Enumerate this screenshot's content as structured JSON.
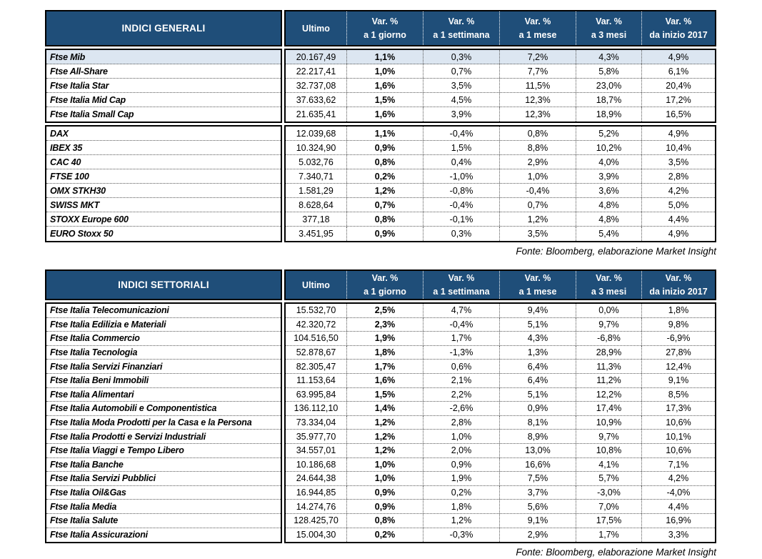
{
  "colors": {
    "header_bg": "#1F4E79",
    "highlight_row_bg": "#DCE6F1",
    "border": "#000000"
  },
  "columns": {
    "ultimo": "Ultimo",
    "var_label": "Var. %",
    "periods": [
      "a 1 giorno",
      "a 1 settimana",
      "a 1 mese",
      "a 3 mesi",
      "da inizio 2017"
    ]
  },
  "tables": [
    {
      "title": "INDICI GENERALI",
      "source": "Fonte: Bloomberg, elaborazione Market Insight",
      "groups": [
        {
          "rows": [
            {
              "name": "Ftse Mib",
              "highlight": true,
              "values": [
                "20.167,49",
                "1,1%",
                "0,3%",
                "7,2%",
                "4,3%",
                "4,9%"
              ]
            },
            {
              "name": "Ftse All-Share",
              "values": [
                "22.217,41",
                "1,0%",
                "0,7%",
                "7,7%",
                "5,8%",
                "6,1%"
              ]
            },
            {
              "name": "Ftse Italia Star",
              "values": [
                "32.737,08",
                "1,6%",
                "3,5%",
                "11,5%",
                "23,0%",
                "20,4%"
              ]
            },
            {
              "name": "Ftse Italia Mid Cap",
              "values": [
                "37.633,62",
                "1,5%",
                "4,5%",
                "12,3%",
                "18,7%",
                "17,2%"
              ]
            },
            {
              "name": "Ftse Italia Small Cap",
              "values": [
                "21.635,41",
                "1,6%",
                "3,9%",
                "12,3%",
                "18,9%",
                "16,5%"
              ]
            }
          ]
        },
        {
          "rows": [
            {
              "name": "DAX",
              "values": [
                "12.039,68",
                "1,1%",
                "-0,4%",
                "0,8%",
                "5,2%",
                "4,9%"
              ]
            },
            {
              "name": "IBEX 35",
              "values": [
                "10.324,90",
                "0,9%",
                "1,5%",
                "8,8%",
                "10,2%",
                "10,4%"
              ]
            },
            {
              "name": "CAC 40",
              "values": [
                "5.032,76",
                "0,8%",
                "0,4%",
                "2,9%",
                "4,0%",
                "3,5%"
              ]
            },
            {
              "name": "FTSE 100",
              "values": [
                "7.340,71",
                "0,2%",
                "-1,0%",
                "1,0%",
                "3,9%",
                "2,8%"
              ]
            },
            {
              "name": "OMX STKH30",
              "values": [
                "1.581,29",
                "1,2%",
                "-0,8%",
                "-0,4%",
                "3,6%",
                "4,2%"
              ]
            },
            {
              "name": "SWISS MKT",
              "values": [
                "8.628,64",
                "0,7%",
                "-0,4%",
                "0,7%",
                "4,8%",
                "5,0%"
              ]
            },
            {
              "name": "STOXX Europe 600",
              "values": [
                "377,18",
                "0,8%",
                "-0,1%",
                "1,2%",
                "4,8%",
                "4,4%"
              ]
            },
            {
              "name": "EURO Stoxx 50",
              "values": [
                "3.451,95",
                "0,9%",
                "0,3%",
                "3,5%",
                "5,4%",
                "4,9%"
              ]
            }
          ]
        }
      ]
    },
    {
      "title": "INDICI SETTORIALI",
      "source": "Fonte: Bloomberg, elaborazione Market Insight",
      "groups": [
        {
          "rows": [
            {
              "name": "Ftse Italia Telecomunicazioni",
              "values": [
                "15.532,70",
                "2,5%",
                "4,7%",
                "9,4%",
                "0,0%",
                "1,8%"
              ]
            },
            {
              "name": "Ftse Italia Edilizia e Materiali",
              "values": [
                "42.320,72",
                "2,3%",
                "-0,4%",
                "5,1%",
                "9,7%",
                "9,8%"
              ]
            },
            {
              "name": "Ftse Italia Commercio",
              "values": [
                "104.516,50",
                "1,9%",
                "1,7%",
                "4,3%",
                "-6,8%",
                "-6,9%"
              ]
            },
            {
              "name": "Ftse Italia Tecnologia",
              "values": [
                "52.878,67",
                "1,8%",
                "-1,3%",
                "1,3%",
                "28,9%",
                "27,8%"
              ]
            },
            {
              "name": "Ftse Italia Servizi Finanziari",
              "values": [
                "82.305,47",
                "1,7%",
                "0,6%",
                "6,4%",
                "11,3%",
                "12,4%"
              ]
            },
            {
              "name": "Ftse Italia Beni Immobili",
              "values": [
                "11.153,64",
                "1,6%",
                "2,1%",
                "6,4%",
                "11,2%",
                "9,1%"
              ]
            },
            {
              "name": "Ftse Italia Alimentari",
              "values": [
                "63.995,84",
                "1,5%",
                "2,2%",
                "5,1%",
                "12,2%",
                "8,5%"
              ]
            },
            {
              "name": "Ftse Italia Automobili e Componentistica",
              "values": [
                "136.112,10",
                "1,4%",
                "-2,6%",
                "0,9%",
                "17,4%",
                "17,3%"
              ]
            },
            {
              "name": "Ftse Italia Moda Prodotti per la Casa e la Persona",
              "values": [
                "73.334,04",
                "1,2%",
                "2,8%",
                "8,1%",
                "10,9%",
                "10,6%"
              ]
            },
            {
              "name": "Ftse Italia Prodotti e Servizi Industriali",
              "values": [
                "35.977,70",
                "1,2%",
                "1,0%",
                "8,9%",
                "9,7%",
                "10,1%"
              ]
            },
            {
              "name": "Ftse Italia Viaggi e Tempo Libero",
              "values": [
                "34.557,01",
                "1,2%",
                "2,0%",
                "13,0%",
                "10,8%",
                "10,6%"
              ]
            },
            {
              "name": "Ftse Italia Banche",
              "values": [
                "10.186,68",
                "1,0%",
                "0,9%",
                "16,6%",
                "4,1%",
                "7,1%"
              ]
            },
            {
              "name": "Ftse Italia Servizi Pubblici",
              "values": [
                "24.644,38",
                "1,0%",
                "1,9%",
                "7,5%",
                "5,7%",
                "4,2%"
              ]
            },
            {
              "name": "Ftse Italia Oil&Gas",
              "values": [
                "16.944,85",
                "0,9%",
                "0,2%",
                "3,7%",
                "-3,0%",
                "-4,0%"
              ]
            },
            {
              "name": "Ftse Italia Media",
              "values": [
                "14.274,76",
                "0,9%",
                "1,8%",
                "5,6%",
                "7,0%",
                "4,4%"
              ]
            },
            {
              "name": "Ftse Italia Salute",
              "values": [
                "128.425,70",
                "0,8%",
                "1,2%",
                "9,1%",
                "17,5%",
                "16,9%"
              ]
            },
            {
              "name": "Ftse Italia Assicurazioni",
              "values": [
                "15.004,30",
                "0,2%",
                "-0,3%",
                "2,9%",
                "1,7%",
                "3,3%"
              ]
            }
          ]
        }
      ]
    }
  ]
}
